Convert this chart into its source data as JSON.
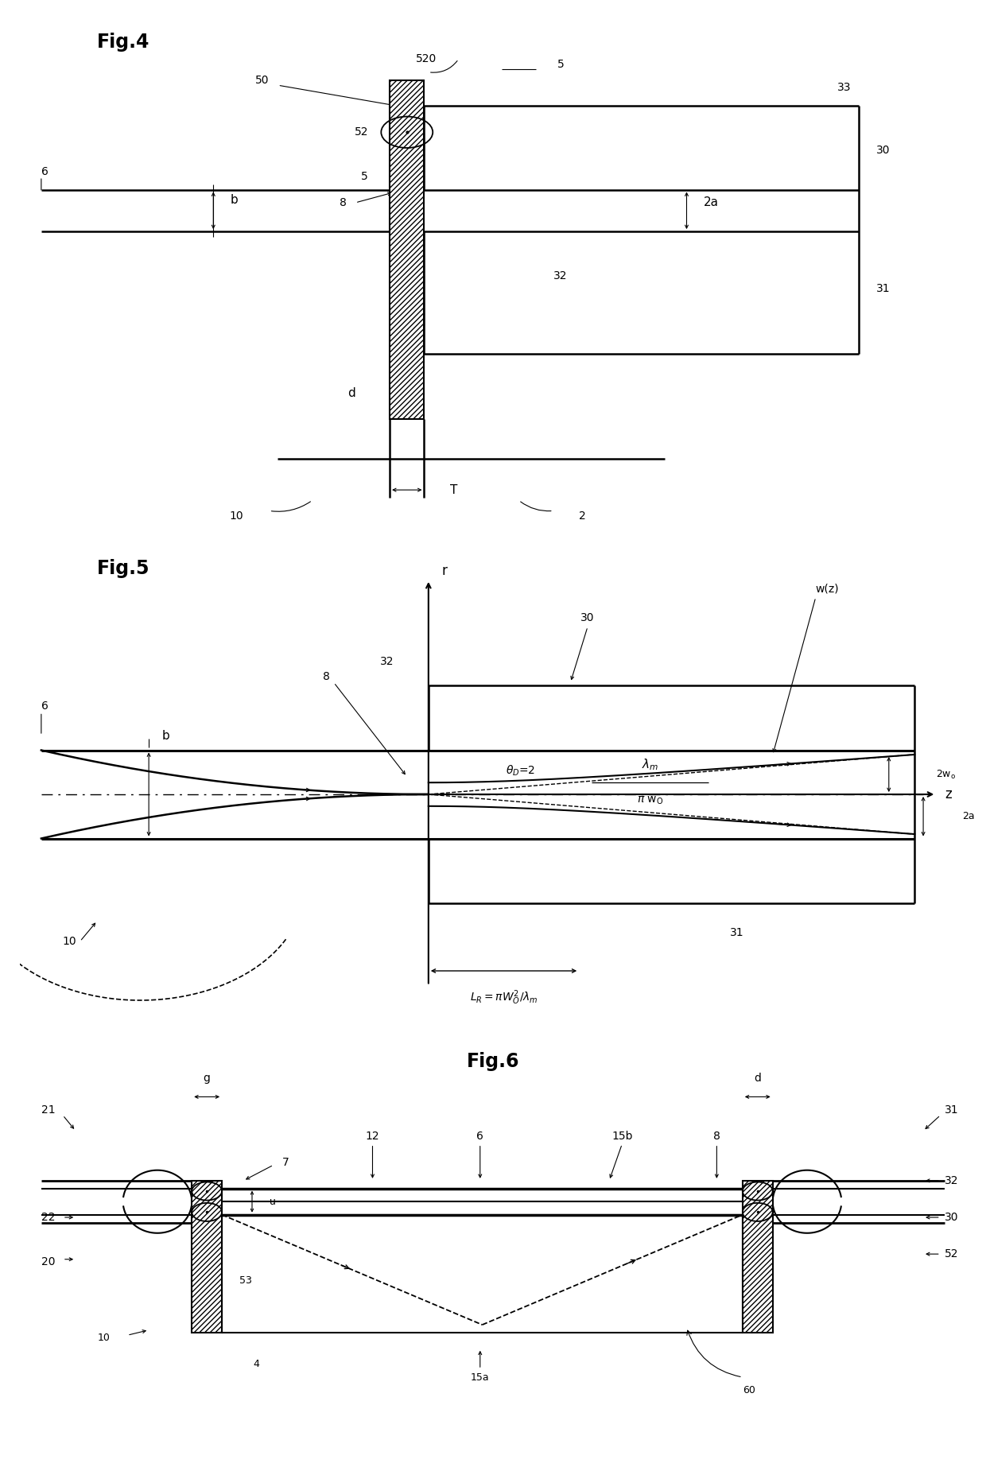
{
  "bg_color": "#ffffff",
  "fig4_title": "Fig.4",
  "fig5_title": "Fig.5",
  "fig6_title": "Fig.6"
}
